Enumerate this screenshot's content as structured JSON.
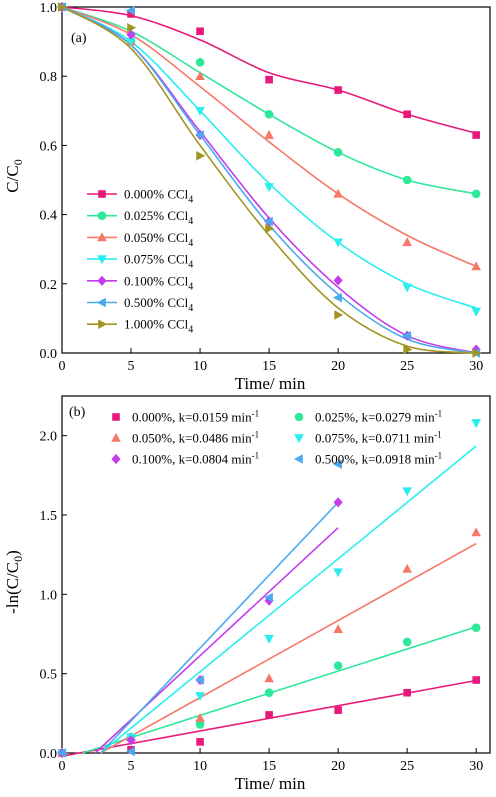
{
  "chart_data": [
    {
      "type": "line",
      "panel_label": "(a)",
      "xlabel": "Time/ min",
      "ylabel": "C/C",
      "ylabel_sub": "0",
      "xlim": [
        0,
        31
      ],
      "ylim": [
        0,
        1.0
      ],
      "xticks": [
        "0",
        "5",
        "10",
        "15",
        "20",
        "25",
        "30"
      ],
      "yticks": [
        "0.0",
        "0.2",
        "0.4",
        "0.6",
        "0.8",
        "1.0"
      ],
      "legend_position": "lower-left",
      "x": [
        0,
        5,
        10,
        15,
        20,
        25,
        30
      ],
      "series": [
        {
          "name": "0.000% CCl",
          "name_sub": "4",
          "marker": "square",
          "color": "#e8197a",
          "values": [
            1.0,
            0.98,
            0.93,
            0.79,
            0.76,
            0.69,
            0.63
          ],
          "fit": [
            1.0,
            0.975,
            0.905,
            0.81,
            0.76,
            0.69,
            0.635
          ]
        },
        {
          "name": "0.025% CCl",
          "name_sub": "4",
          "marker": "circle",
          "color": "#2ee89a",
          "values": [
            1.0,
            0.9,
            0.84,
            0.69,
            0.58,
            0.5,
            0.46
          ],
          "fit": [
            1.0,
            0.93,
            0.81,
            0.69,
            0.58,
            0.5,
            0.46
          ]
        },
        {
          "name": "0.050% CCl",
          "name_sub": "4",
          "marker": "triangle-up",
          "color": "#f57869",
          "values": [
            1.0,
            0.9,
            0.8,
            0.63,
            0.46,
            0.32,
            0.25
          ],
          "fit": [
            1.0,
            0.92,
            0.77,
            0.61,
            0.46,
            0.34,
            0.25
          ]
        },
        {
          "name": "0.075% CCl",
          "name_sub": "4",
          "marker": "triangle-down",
          "color": "#28eef0",
          "values": [
            1.0,
            0.9,
            0.7,
            0.48,
            0.32,
            0.19,
            0.12
          ],
          "fit": [
            1.0,
            0.9,
            0.7,
            0.49,
            0.32,
            0.2,
            0.13
          ]
        },
        {
          "name": "0.100% CCl",
          "name_sub": "4",
          "marker": "diamond",
          "color": "#c23ded",
          "values": [
            1.0,
            0.92,
            0.63,
            0.38,
            0.21,
            0.05,
            0.01
          ],
          "fit": [
            1.0,
            0.89,
            0.64,
            0.39,
            0.19,
            0.05,
            0.0
          ]
        },
        {
          "name": "0.500% CCl",
          "name_sub": "4",
          "marker": "triangle-left",
          "color": "#4aaaee",
          "values": [
            1.0,
            0.99,
            0.63,
            0.38,
            0.16,
            0.05,
            0.0
          ],
          "fit": [
            1.0,
            0.89,
            0.63,
            0.37,
            0.17,
            0.04,
            0.0
          ]
        },
        {
          "name": "1.000% CCl",
          "name_sub": "4",
          "marker": "triangle-right",
          "color": "#a29420",
          "values": [
            1.0,
            0.94,
            0.57,
            0.36,
            0.11,
            0.01,
            0.0
          ],
          "fit": [
            1.0,
            0.88,
            0.6,
            0.34,
            0.13,
            0.02,
            0.0
          ]
        }
      ]
    },
    {
      "type": "scatter",
      "panel_label": "(b)",
      "xlabel": "Time/ min",
      "ylabel": "-ln(C/C",
      "ylabel_sub": "0",
      "ylabel_end": ")",
      "xlim": [
        0,
        31
      ],
      "ylim": [
        0,
        2.25
      ],
      "xticks": [
        "0",
        "5",
        "10",
        "15",
        "20",
        "25",
        "30"
      ],
      "yticks": [
        "0.0",
        "0.5",
        "1.0",
        "1.5",
        "2.0"
      ],
      "legend_position": "top",
      "series": [
        {
          "name": "0.000%, k=0.0159 min",
          "name_sup": "-1",
          "marker": "square",
          "color": "#e8197a",
          "x": [
            0,
            5,
            10,
            15,
            20,
            25,
            30
          ],
          "values": [
            0.0,
            0.02,
            0.07,
            0.24,
            0.27,
            0.38,
            0.46
          ],
          "fit_x": [
            0,
            30
          ],
          "fit_y": [
            -0.02,
            0.457
          ]
        },
        {
          "name": "0.025%, k=0.0279 min",
          "name_sup": "-1",
          "marker": "circle",
          "color": "#2ee89a",
          "x": [
            0,
            5,
            10,
            15,
            20,
            25,
            30
          ],
          "values": [
            0.0,
            0.1,
            0.18,
            0.38,
            0.55,
            0.7,
            0.79
          ],
          "fit_x": [
            1.5,
            30
          ],
          "fit_y": [
            0.0,
            0.795
          ]
        },
        {
          "name": "0.050%, k=0.0486 min",
          "name_sup": "-1",
          "marker": "triangle-up",
          "color": "#f57869",
          "x": [
            0,
            5,
            10,
            15,
            20,
            25,
            30
          ],
          "values": [
            0.0,
            0.1,
            0.22,
            0.47,
            0.78,
            1.16,
            1.39
          ],
          "fit_x": [
            2.8,
            30
          ],
          "fit_y": [
            0.0,
            1.32
          ]
        },
        {
          "name": "0.075%, k=0.0711 min",
          "name_sup": "-1",
          "marker": "triangle-down",
          "color": "#28eef0",
          "x": [
            0,
            5,
            10,
            15,
            20,
            25,
            30
          ],
          "values": [
            0.0,
            0.1,
            0.36,
            0.72,
            1.14,
            1.65,
            2.08
          ],
          "fit_x": [
            2.8,
            30
          ],
          "fit_y": [
            0.0,
            1.935
          ]
        },
        {
          "name": "0.100%, k=0.0804 min",
          "name_sup": "-1",
          "marker": "diamond",
          "color": "#c23ded",
          "x": [
            0,
            5,
            10,
            15,
            20
          ],
          "values": [
            0.0,
            0.08,
            0.46,
            0.96,
            1.58
          ],
          "fit_x": [
            2.4,
            20
          ],
          "fit_y": [
            0.0,
            1.42
          ]
        },
        {
          "name": "0.500%, k=0.0918 min",
          "name_sup": "-1",
          "marker": "triangle-left",
          "color": "#4aaaee",
          "x": [
            0,
            5,
            10,
            15,
            20
          ],
          "values": [
            0.0,
            0.01,
            0.46,
            0.98,
            1.82
          ],
          "fit_x": [
            2.8,
            20
          ],
          "fit_y": [
            0.0,
            1.58
          ]
        }
      ]
    }
  ]
}
